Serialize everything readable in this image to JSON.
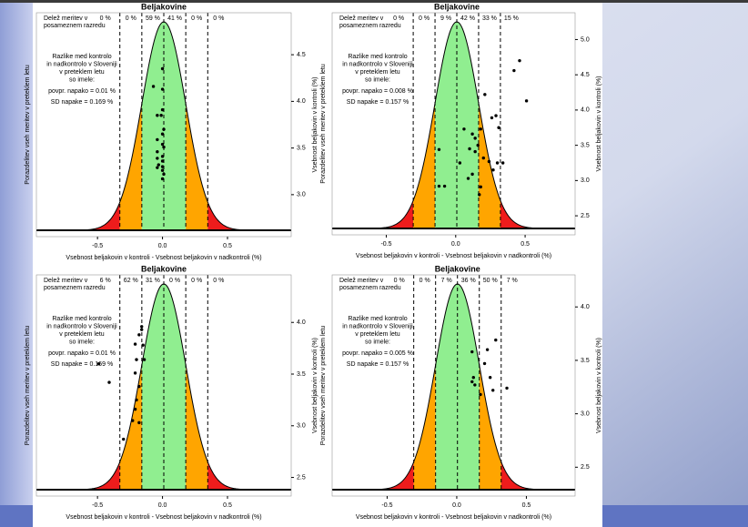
{
  "chart_data": [
    {
      "type": "scatter",
      "title": "Beljakovine",
      "xlabel": "Vsebnost beljakovin v kontroli - Vsebnost beljakovin v nadkontroli (%)",
      "ylabel": "Vsebnost beljakovin v kontroli (%)",
      "ylabel_left": "Porazdelitev vseh meritev v preteklem letu",
      "legend_title": [
        "Delež meritev v",
        "posameznem razredu"
      ],
      "class_shares": [
        "0 %",
        "0 %",
        "59 %",
        "41 %",
        "0 %",
        "0 %"
      ],
      "note": [
        "Razlike med kontrolo",
        "in nadkontrolo v Sloveniji",
        "v preteklem letu",
        "so imele:"
      ],
      "stats": [
        {
          "label": "povpr. napako =",
          "value": 0.01,
          "unit": "%"
        },
        {
          "label": "SD napake =",
          "value": 0.169,
          "unit": "%"
        }
      ],
      "x": [
        0,
        -0.07,
        0,
        0,
        -0.01,
        -0.04,
        0.01,
        0,
        -0.04,
        0,
        0.01,
        -0.04,
        0,
        -0.04,
        0,
        -0.03,
        0,
        -0.04,
        0,
        0.01,
        0
      ],
      "y": [
        4.35,
        4.16,
        4.13,
        3.91,
        3.85,
        3.85,
        3.7,
        3.65,
        3.59,
        3.54,
        3.51,
        3.46,
        3.41,
        3.39,
        3.36,
        3.32,
        3.3,
        3.29,
        3.26,
        3.22,
        3.17
      ],
      "xlim": [
        -0.97,
        0.99
      ],
      "ylim": [
        2.55,
        4.95
      ],
      "xticks": [
        -0.5,
        {
          "value": 0,
          "label": "0.0"
        },
        0.5
      ],
      "yticks": [
        {
          "value": 3,
          "label": "3.0"
        },
        3.5,
        {
          "value": 4,
          "label": "4.0"
        },
        4.5
      ]
    },
    {
      "type": "scatter",
      "title": "Beljakovine",
      "xlabel": "Vsebnost beljakovin v kontroli - Vsebnost beljakovin v nadkontroli (%)",
      "ylabel": "Vsebnost beljakovin v kontroli (%)",
      "ylabel_left": "Porazdelitev vseh meritev v preteklem letu",
      "legend_title": [
        "Delež meritev v",
        "posameznem razredu"
      ],
      "class_shares": [
        "0 %",
        "0 %",
        "9 %",
        "42 %",
        "33 %",
        "15 %"
      ],
      "note": [
        "Razlike med kontrolo",
        "in nadkontrolo v Sloveniji",
        "v preteklem letu",
        "so imele:"
      ],
      "stats": [
        {
          "label": "povpr. napako =",
          "value": 0.008,
          "unit": "%"
        },
        {
          "label": "SD napake =",
          "value": 0.157,
          "unit": "%"
        }
      ],
      "x": [
        0.46,
        0.42,
        0.51,
        0.21,
        0.26,
        0.29,
        0.31,
        0.18,
        0.06,
        0.12,
        0.14,
        0.16,
        0.1,
        0.14,
        -0.12,
        0.2,
        0.24,
        0.03,
        0.3,
        0.34,
        0.27,
        0.12,
        -0.12,
        -0.08,
        0.18,
        0.17,
        0.09
      ],
      "y": [
        4.7,
        4.56,
        4.13,
        4.22,
        3.89,
        3.92,
        3.75,
        3.73,
        3.73,
        3.66,
        3.6,
        3.5,
        3.45,
        3.41,
        3.44,
        3.32,
        3.27,
        3.25,
        3.25,
        3.25,
        3.15,
        3.09,
        2.92,
        2.92,
        2.91,
        2.8,
        3.03
      ],
      "xlim": [
        -0.89,
        0.86
      ],
      "ylim": [
        2.23,
        5.38
      ],
      "xticks": [
        -0.5,
        {
          "value": 0,
          "label": "0.0"
        },
        0.5
      ],
      "yticks": [
        2.5,
        {
          "value": 3,
          "label": "3.0"
        },
        3.5,
        {
          "value": 4,
          "label": "4.0"
        },
        4.5,
        {
          "value": 5,
          "label": "5.0"
        }
      ]
    },
    {
      "type": "scatter",
      "title": "Beljakovine",
      "xlabel": "Vsebnost beljakovin v kontroli - Vsebnost beljakovin v nadkontroli (%)",
      "ylabel": "Vsebnost beljakovin v kontroli (%)",
      "ylabel_left": "Porazdelitev vseh meritev v preteklem letu",
      "legend_title": [
        "Delež meritev v",
        "posameznem razredu"
      ],
      "class_shares": [
        "6 %",
        "62 %",
        "31 %",
        "0 %",
        "0 %",
        "0 %"
      ],
      "note": [
        "Razlike med kontrolo",
        "in nadkontrolo v Sloveniji",
        "v preteklem letu",
        "so imele:"
      ],
      "stats": [
        {
          "label": "povpr. napako =",
          "value": 0.01,
          "unit": "%"
        },
        {
          "label": "SD napake =",
          "value": 0.169,
          "unit": "%"
        }
      ],
      "x": [
        -0.16,
        -0.18,
        -0.21,
        -0.15,
        -0.16,
        -0.49,
        -0.41,
        -0.2,
        -0.21,
        -0.18,
        -0.2,
        -0.21,
        -0.23,
        -0.18,
        -0.3,
        -0.14
      ],
      "y": [
        3.96,
        3.88,
        3.79,
        3.78,
        3.93,
        3.6,
        3.42,
        3.64,
        3.51,
        3.38,
        3.25,
        3.16,
        3.05,
        3.03,
        2.87,
        3.64
      ],
      "xlim": [
        -0.97,
        0.99
      ],
      "ylim": [
        2.32,
        4.46
      ],
      "xticks": [
        -0.5,
        {
          "value": 0,
          "label": "0.0"
        },
        0.5
      ],
      "yticks": [
        2.5,
        {
          "value": 3,
          "label": "3.0"
        },
        3.5,
        {
          "value": 4,
          "label": "4.0"
        }
      ]
    },
    {
      "type": "scatter",
      "title": "Beljakovine",
      "xlabel": "Vsebnost beljakovin v kontroli - Vsebnost beljakovin v nadkontroli (%)",
      "ylabel": "Vsebnost beljakovin v kontroli (%)",
      "ylabel_left": "Porazdelitev vseh meritev v preteklem letu",
      "legend_title": [
        "Delež meritev v",
        "posameznem razredu"
      ],
      "class_shares": [
        "0 %",
        "0 %",
        "7 %",
        "36 %",
        "50 %",
        "7 %"
      ],
      "note": [
        "Razlike med kontrolo",
        "in nadkontrolo v Sloveniji",
        "v preteklem letu",
        "so imele:"
      ],
      "stats": [
        {
          "label": "povpr. napako =",
          "value": 0.005,
          "unit": "%"
        },
        {
          "label": "SD napake =",
          "value": 0.157,
          "unit": "%"
        }
      ],
      "x": [
        0.28,
        0.22,
        0.11,
        0.2,
        0.11,
        0.13,
        0.26,
        0.36,
        0.17,
        0.12,
        0.24
      ],
      "y": [
        3.69,
        3.6,
        3.58,
        3.47,
        3.3,
        3.27,
        3.22,
        3.24,
        3.18,
        3.34,
        3.34
      ],
      "xlim": [
        -0.895,
        0.85
      ],
      "ylim": [
        2.23,
        4.3
      ],
      "xticks": [
        -0.5,
        {
          "value": 0,
          "label": "0.0"
        },
        0.5
      ],
      "yticks": [
        2.5,
        {
          "value": 3,
          "label": "3.0"
        },
        3.5,
        {
          "value": 4,
          "label": "4.0"
        }
      ]
    }
  ]
}
